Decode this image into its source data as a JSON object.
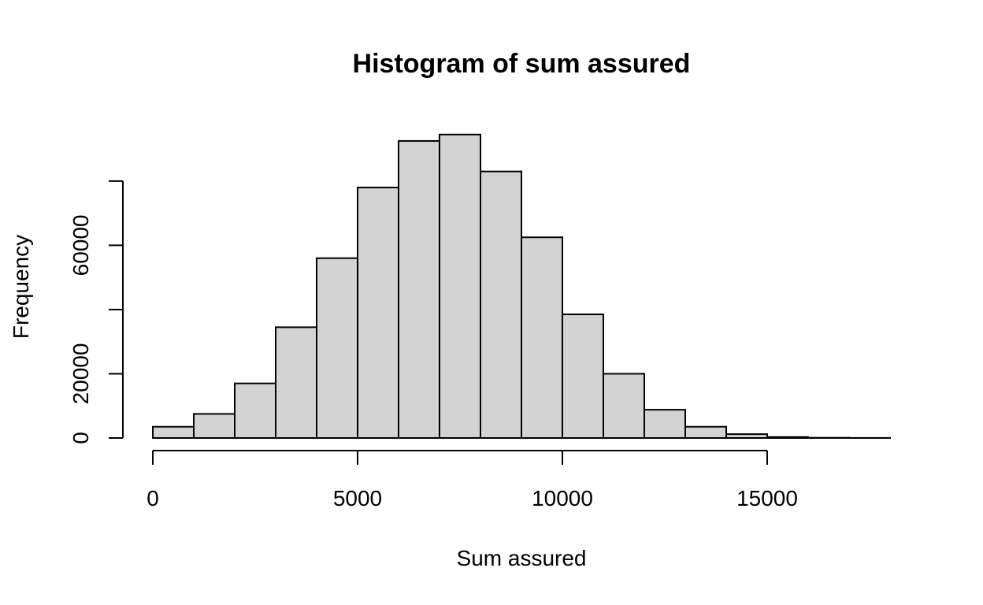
{
  "chart_data": {
    "type": "bar",
    "title": "Histogram of sum assured",
    "xlabel": "Sum assured",
    "ylabel": "Frequency",
    "bar_color": "#d3d3d3",
    "bins": [
      {
        "from": 0,
        "to": 1000,
        "value": 3500
      },
      {
        "from": 1000,
        "to": 2000,
        "value": 7500
      },
      {
        "from": 2000,
        "to": 3000,
        "value": 17000
      },
      {
        "from": 3000,
        "to": 4000,
        "value": 34500
      },
      {
        "from": 4000,
        "to": 5000,
        "value": 56000
      },
      {
        "from": 5000,
        "to": 6000,
        "value": 78000
      },
      {
        "from": 6000,
        "to": 7000,
        "value": 92500
      },
      {
        "from": 7000,
        "to": 8000,
        "value": 94500
      },
      {
        "from": 8000,
        "to": 9000,
        "value": 83000
      },
      {
        "from": 9000,
        "to": 10000,
        "value": 62500
      },
      {
        "from": 10000,
        "to": 11000,
        "value": 38500
      },
      {
        "from": 11000,
        "to": 12000,
        "value": 20000
      },
      {
        "from": 12000,
        "to": 13000,
        "value": 8800
      },
      {
        "from": 13000,
        "to": 14000,
        "value": 3500
      },
      {
        "from": 14000,
        "to": 15000,
        "value": 1200
      },
      {
        "from": 15000,
        "to": 16000,
        "value": 300
      },
      {
        "from": 16000,
        "to": 17000,
        "value": 80
      },
      {
        "from": 17000,
        "to": 18000,
        "value": 20
      }
    ],
    "x_ticks": [
      0,
      5000,
      10000,
      15000
    ],
    "x_tick_labels": [
      "0",
      "5000",
      "10000",
      "15000"
    ],
    "y_ticks": [
      0,
      20000,
      40000,
      60000,
      80000
    ],
    "y_tick_labels": [
      "0",
      "20000",
      "",
      "60000",
      ""
    ],
    "xlim": [
      0,
      18000
    ],
    "ylim": [
      0,
      94500
    ],
    "grid": false
  }
}
